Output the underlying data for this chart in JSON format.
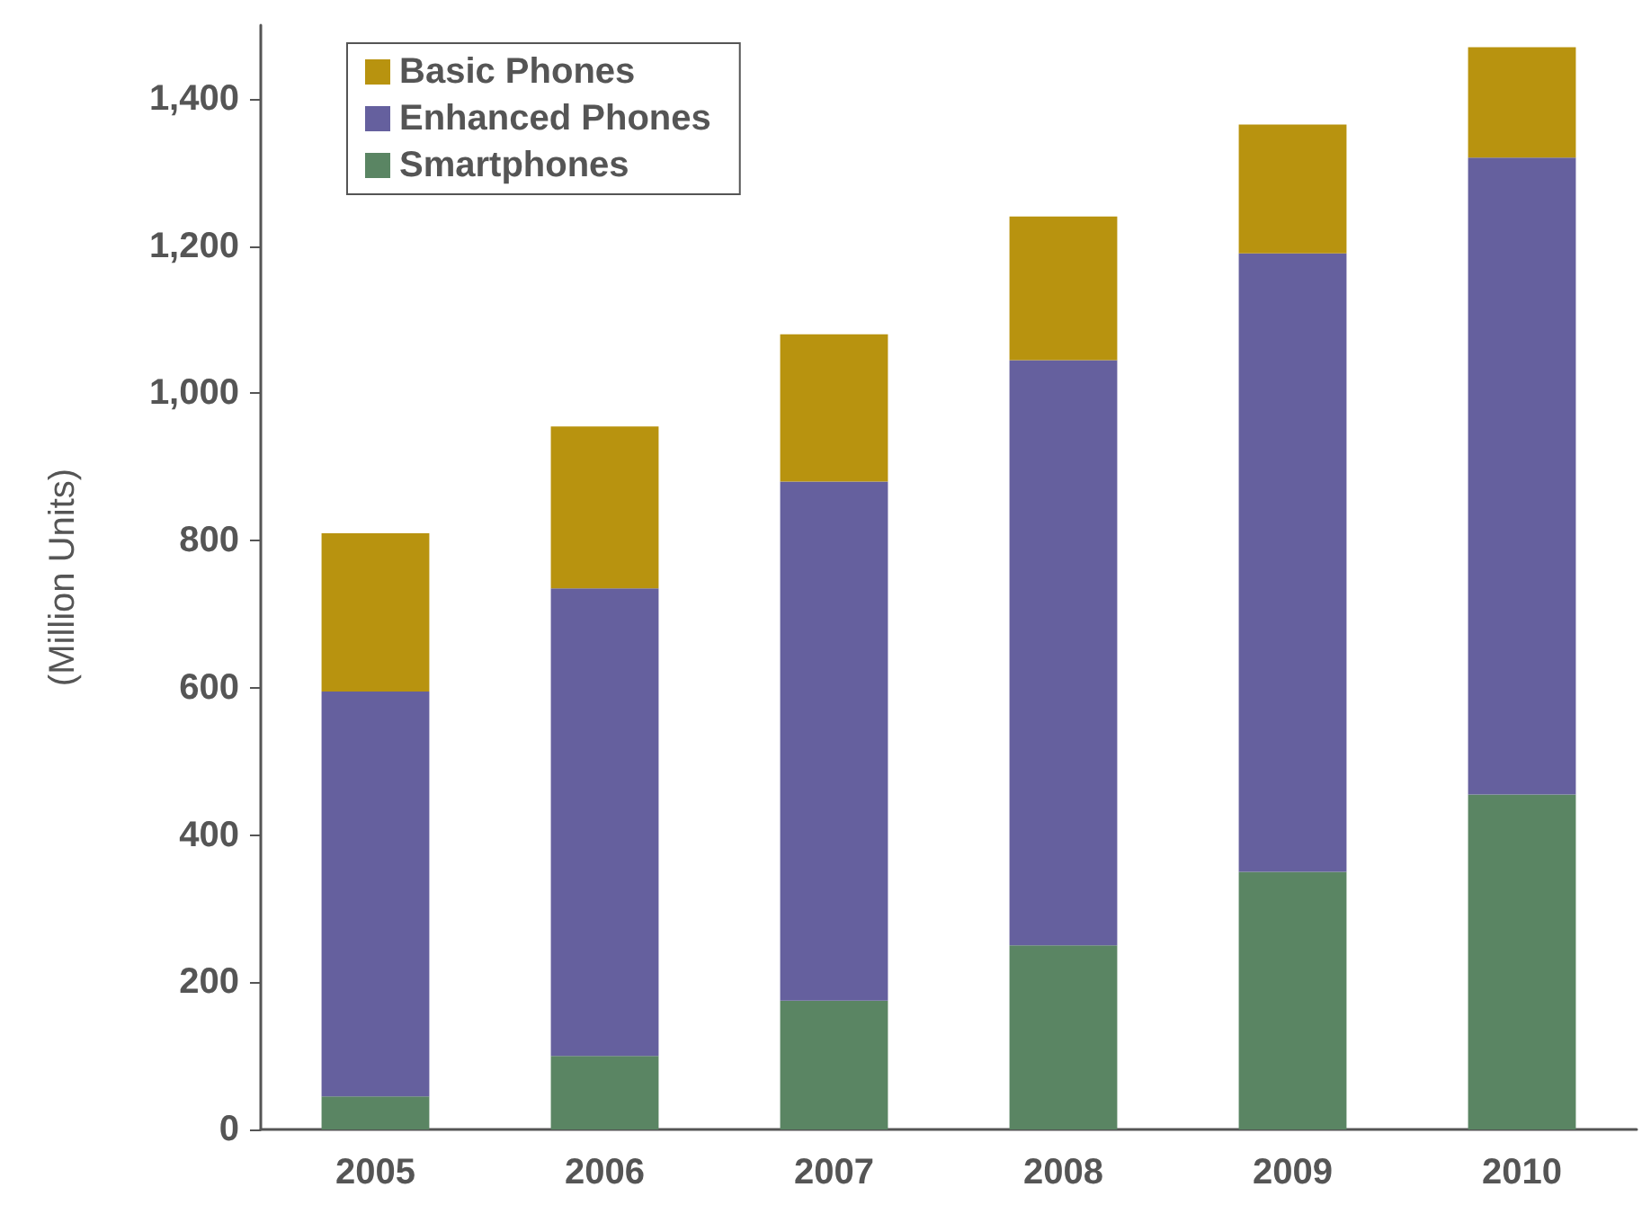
{
  "chart_data": {
    "type": "bar",
    "ylabel": "(Million Units)",
    "categories": [
      "2005",
      "2006",
      "2007",
      "2008",
      "2009",
      "2010"
    ],
    "stacked": true,
    "series": [
      {
        "name": "Smartphones",
        "color": "#5a8563",
        "values": [
          45,
          100,
          175,
          250,
          350,
          455
        ]
      },
      {
        "name": "Enhanced Phones",
        "color": "#65609e",
        "values": [
          550,
          635,
          705,
          795,
          840,
          865
        ]
      },
      {
        "name": "Basic Phones",
        "color": "#b8930f",
        "values": [
          215,
          220,
          200,
          195,
          175,
          150
        ]
      }
    ],
    "ylim": [
      0,
      1500
    ],
    "yticks": [
      {
        "value": 0,
        "label": "0"
      },
      {
        "value": 200,
        "label": "200"
      },
      {
        "value": 400,
        "label": "400"
      },
      {
        "value": 600,
        "label": "600"
      },
      {
        "value": 800,
        "label": "800"
      },
      {
        "value": 1000,
        "label": "1,000"
      },
      {
        "value": 1200,
        "label": "1,200"
      },
      {
        "value": 1400,
        "label": "1,400"
      }
    ],
    "grid": false,
    "legend": "top left"
  }
}
